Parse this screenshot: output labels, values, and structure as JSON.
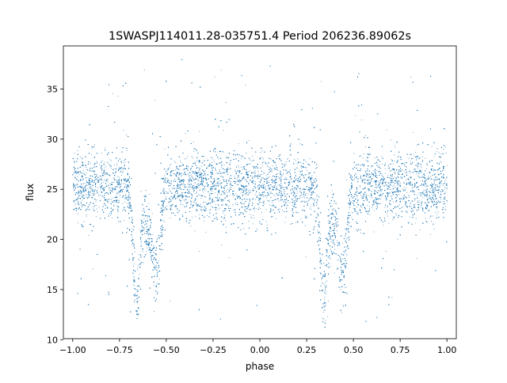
{
  "chart_data": {
    "type": "scatter",
    "title": "1SWASPJ114011.28-035751.4 Period 206236.89062s",
    "xlabel": "phase",
    "ylabel": "flux",
    "xlim": [
      -1.05,
      1.05
    ],
    "ylim": [
      10.1,
      39.3
    ],
    "xticks": [
      -1.0,
      -0.75,
      -0.5,
      -0.25,
      0.0,
      0.25,
      0.5,
      0.75,
      1.0
    ],
    "xtick_labels": [
      "−1.00",
      "−0.75",
      "−0.50",
      "−0.25",
      "0.00",
      "0.25",
      "0.50",
      "0.75",
      "1.00"
    ],
    "yticks": [
      10,
      15,
      20,
      25,
      30,
      35
    ],
    "ytick_labels": [
      "10",
      "15",
      "20",
      "25",
      "30",
      "35"
    ],
    "grid": false,
    "legend": "none",
    "marker_color": "#1f77b4",
    "series_description_points": {
      "x": [
        -1.0,
        -0.9,
        -0.8,
        -0.75,
        -0.7,
        -0.68,
        -0.66,
        -0.62,
        -0.56,
        -0.54,
        -0.45,
        -0.3,
        -0.25,
        -0.1,
        0.0,
        0.1,
        0.2,
        0.25,
        0.3,
        0.32,
        0.34,
        0.38,
        0.44,
        0.46,
        0.55,
        0.7,
        0.75,
        0.9,
        1.0
      ],
      "y": [
        25.0,
        25.1,
        25.0,
        24.6,
        22.5,
        19.0,
        15.5,
        20.5,
        17.8,
        18.0,
        24.8,
        25.2,
        25.3,
        25.1,
        25.0,
        25.1,
        25.0,
        24.6,
        22.5,
        19.0,
        15.5,
        20.5,
        17.8,
        18.0,
        24.8,
        25.2,
        25.3,
        25.1,
        25.0
      ]
    }
  }
}
